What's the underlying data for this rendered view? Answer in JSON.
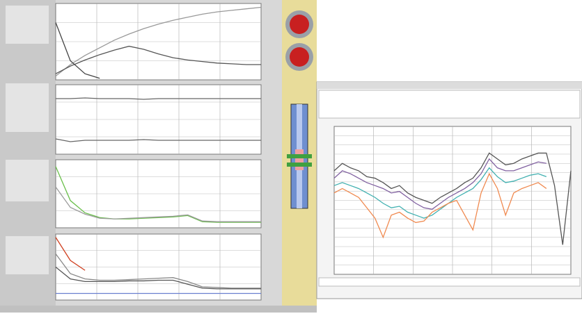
{
  "left_plots": [
    {
      "ylim": [
        0,
        100
      ],
      "series": [
        {
          "color": "#999999",
          "values": [
            5,
            20,
            32,
            42,
            52,
            60,
            67,
            73,
            78,
            82,
            86,
            89,
            91,
            93,
            95
          ]
        },
        {
          "color": "#555555",
          "values": [
            8,
            18,
            26,
            33,
            39,
            44,
            40,
            34,
            29,
            26,
            24,
            22,
            21,
            20,
            20
          ]
        },
        {
          "color": "#444444",
          "values": [
            75,
            25,
            8,
            2,
            null,
            null,
            null,
            null,
            null,
            null,
            null,
            null,
            null,
            null,
            null
          ]
        }
      ]
    },
    {
      "ylim": [
        0,
        100
      ],
      "series": [
        {
          "color": "#666666",
          "values": [
            80,
            80,
            81,
            80,
            80,
            80,
            79,
            80,
            80,
            80,
            80,
            80,
            80,
            80,
            80
          ]
        },
        {
          "color": "#666666",
          "values": [
            22,
            18,
            20,
            20,
            20,
            20,
            21,
            20,
            20,
            20,
            20,
            20,
            20,
            20,
            20
          ]
        }
      ]
    },
    {
      "ylim": [
        0,
        100
      ],
      "series": [
        {
          "color": "#6abf4b",
          "values": [
            90,
            40,
            22,
            15,
            13,
            13,
            14,
            15,
            16,
            18,
            9,
            8,
            8,
            8,
            8
          ]
        },
        {
          "color": "#9c9c9c",
          "values": [
            60,
            30,
            20,
            14,
            13,
            14,
            15,
            16,
            17,
            19,
            10,
            9,
            9,
            9,
            9
          ]
        }
      ]
    },
    {
      "ylim": [
        0,
        100
      ],
      "series": [
        {
          "color": "#d04020",
          "values": [
            95,
            60,
            45,
            null,
            null,
            null,
            null,
            null,
            null,
            null,
            null,
            null,
            null,
            null,
            null
          ]
        },
        {
          "color": "#888888",
          "values": [
            70,
            40,
            32,
            30,
            30,
            31,
            32,
            33,
            34,
            28,
            20,
            19,
            18,
            18,
            18
          ]
        },
        {
          "color": "#555555",
          "values": [
            50,
            32,
            28,
            28,
            28,
            29,
            29,
            30,
            30,
            24,
            18,
            17,
            17,
            17,
            17
          ]
        },
        {
          "color": "#6a7fd0",
          "values": [
            10,
            10,
            10,
            10,
            10,
            10,
            10,
            10,
            10,
            10,
            10,
            10,
            10,
            10,
            10
          ]
        }
      ]
    }
  ],
  "right_plot": {
    "ylim": [
      0,
      100
    ],
    "series": [
      {
        "color": "#555555",
        "values": [
          70,
          75,
          72,
          70,
          66,
          65,
          62,
          58,
          60,
          55,
          52,
          50,
          48,
          52,
          55,
          58,
          62,
          65,
          72,
          82,
          78,
          74,
          75,
          78,
          80,
          82,
          82,
          60,
          20,
          70
        ]
      },
      {
        "color": "#8060a0",
        "values": [
          65,
          70,
          68,
          65,
          62,
          60,
          58,
          55,
          56,
          52,
          48,
          45,
          44,
          48,
          52,
          55,
          58,
          62,
          68,
          78,
          72,
          70,
          70,
          72,
          74,
          76,
          75,
          null,
          null,
          null
        ]
      },
      {
        "color": "#40b0b0",
        "values": [
          60,
          62,
          60,
          58,
          55,
          52,
          48,
          45,
          46,
          42,
          40,
          38,
          40,
          44,
          48,
          52,
          55,
          58,
          64,
          72,
          66,
          62,
          63,
          65,
          67,
          68,
          66,
          null,
          null,
          null
        ]
      },
      {
        "color": "#f08a50",
        "values": [
          55,
          58,
          55,
          52,
          45,
          38,
          25,
          40,
          42,
          38,
          35,
          36,
          42,
          45,
          48,
          50,
          40,
          30,
          55,
          68,
          58,
          40,
          55,
          58,
          60,
          62,
          58,
          null,
          null,
          null
        ]
      }
    ]
  }
}
